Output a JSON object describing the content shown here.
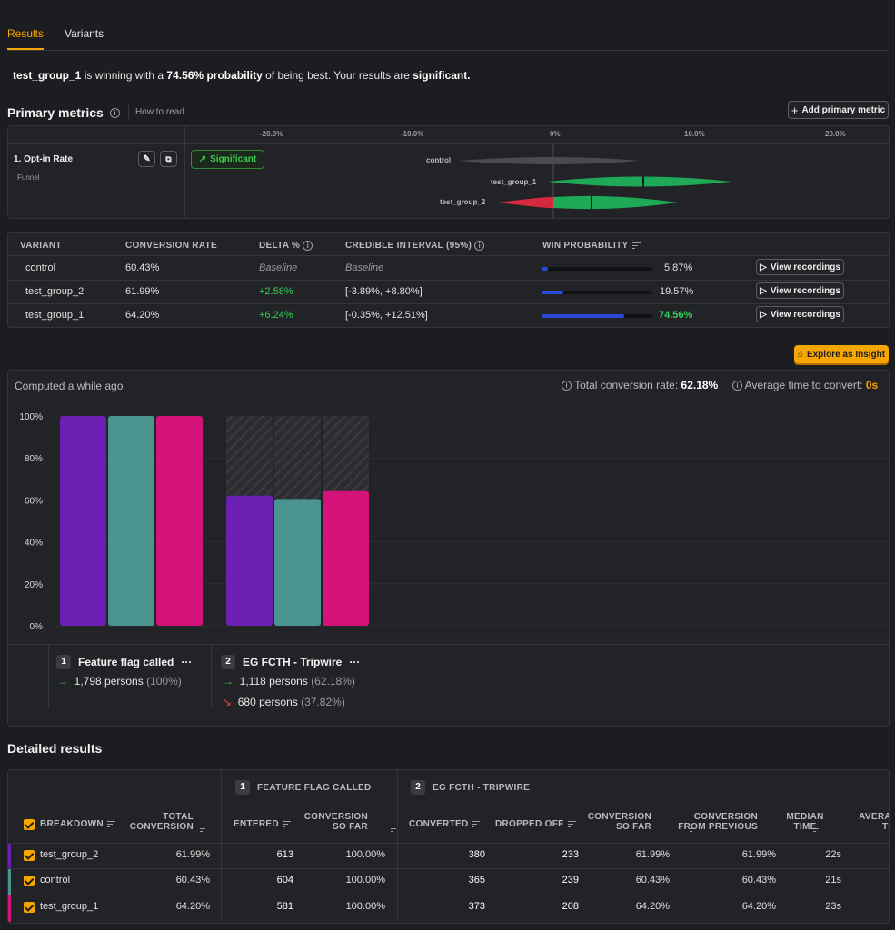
{
  "tabs": [
    {
      "label": "Results"
    },
    {
      "label": "Variants"
    }
  ],
  "summary": {
    "winner": "test_group_1",
    "text1": " is winning with a ",
    "probability": "74.56% probability",
    "text2": " of being best. Your results are ",
    "significance": "significant."
  },
  "primary_metrics": {
    "title": "Primary metrics",
    "how_to_read": "How to read",
    "add_button": "Add primary metric",
    "axis_ticks": [
      "-20.0%",
      "-10.0%",
      "0%",
      "10.0%",
      "20.0%"
    ],
    "metric": {
      "name": "1. Opt-in Rate",
      "type": "Funnel",
      "badge": "Significant"
    },
    "interval_labels": [
      "control",
      "test_group_1",
      "test_group_2"
    ]
  },
  "variants_table": {
    "headers": {
      "variant": "VARIANT",
      "conversion_rate": "CONVERSION RATE",
      "delta": "DELTA %",
      "credible_interval": "CREDIBLE INTERVAL (95%)",
      "win_probability": "WIN PROBABILITY"
    },
    "view_recordings": "View recordings",
    "rows": [
      {
        "variant": "control",
        "conversion_rate": "60.43%",
        "delta": "Baseline",
        "interval": "Baseline",
        "win": "5.87%",
        "win_value": 0.0587
      },
      {
        "variant": "test_group_2",
        "conversion_rate": "61.99%",
        "delta": "+2.58%",
        "interval": "[-3.89%, +8.80%]",
        "win": "19.57%",
        "win_value": 0.1957
      },
      {
        "variant": "test_group_1",
        "conversion_rate": "64.20%",
        "delta": "+6.24%",
        "interval": "[-0.35%, +12.51%]",
        "win": "74.56%",
        "win_value": 0.7456
      }
    ]
  },
  "explore_button": "Explore as Insight",
  "funnel": {
    "computed": "Computed a while ago",
    "total_label": "Total conversion rate: ",
    "total_value": "62.18%",
    "avg_label": "Average time to convert: ",
    "avg_value": "0s",
    "y_ticks": [
      "100%",
      "80%",
      "60%",
      "40%",
      "20%",
      "0%"
    ],
    "colors": {
      "test_group_2": "#6b1fb3",
      "control": "#4a9490",
      "test_group_1": "#d4127a"
    },
    "steps": [
      {
        "number": "1",
        "name": "Feature flag called",
        "menu": "···",
        "converted": "1,798 persons",
        "converted_pct": "(100%)",
        "bars": [
          1.0,
          1.0,
          1.0
        ]
      },
      {
        "number": "2",
        "name": "EG FCTH - Tripwire",
        "menu": "···",
        "converted": "1,118 persons",
        "converted_pct": "(62.18%)",
        "dropped": "680 persons",
        "dropped_pct": "(37.82%)",
        "bars": [
          0.6199,
          0.6043,
          0.642
        ]
      }
    ]
  },
  "detailed": {
    "title": "Detailed results",
    "step1_header": "FEATURE FLAG CALLED",
    "step2_header": "EG FCTH - TRIPWIRE",
    "step1_num": "1",
    "step2_num": "2",
    "columns": {
      "breakdown": "BREAKDOWN",
      "total_conv_1": "TOTAL",
      "total_conv_2": "CONVERSION",
      "entered": "ENTERED",
      "conv_so_far_1": "CONVERSION",
      "conv_so_far_2": "SO FAR",
      "converted": "CONVERTED",
      "dropped_off": "DROPPED OFF",
      "conv_so_far2_1": "CONVERSION",
      "conv_so_far2_2": "SO FAR",
      "conv_prev_1": "CONVERSION",
      "conv_prev_2": "FROM PREVIOUS",
      "median_1": "MEDIAN",
      "median_2": "TIME",
      "avg_1": "AVERAG",
      "avg_2": "TIM"
    },
    "rows": [
      {
        "name": "test_group_2",
        "color": "#6b1fb3",
        "total": "61.99%",
        "entered": "613",
        "so_far": "100.00%",
        "converted": "380",
        "dropped": "233",
        "so_far2": "61.99%",
        "from_prev": "61.99%",
        "median": "22s"
      },
      {
        "name": "control",
        "color": "#4a9490",
        "total": "60.43%",
        "entered": "604",
        "so_far": "100.00%",
        "converted": "365",
        "dropped": "239",
        "so_far2": "60.43%",
        "from_prev": "60.43%",
        "median": "21s"
      },
      {
        "name": "test_group_1",
        "color": "#d4127a",
        "total": "64.20%",
        "entered": "581",
        "so_far": "100.00%",
        "converted": "373",
        "dropped": "208",
        "so_far2": "64.20%",
        "from_prev": "64.20%",
        "median": "23s"
      }
    ]
  }
}
